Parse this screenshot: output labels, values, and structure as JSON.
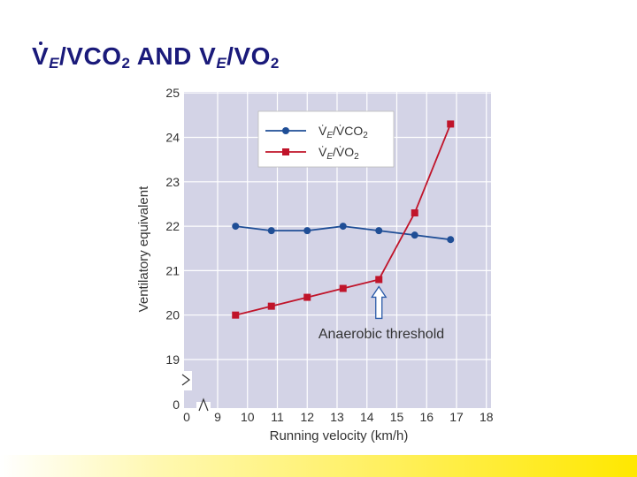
{
  "slide": {
    "title_part1": "V",
    "title_sub1": "E",
    "title_part2": "/V",
    "title_part3": "CO",
    "title_sub2": "2",
    "title_part4": " AND V",
    "title_sub3": "E",
    "title_part5": "/V",
    "title_part6": "O",
    "title_sub4": "2"
  },
  "colors": {
    "plot_background": "#d3d3e6",
    "grid": "#ffffff",
    "series_co2": "#1f4e96",
    "series_o2": "#c0142a",
    "arrow_fill": "#ffffff",
    "arrow_stroke": "#2a5aa8",
    "footer": "#ffe800"
  },
  "chart_data": {
    "type": "line",
    "xlabel": "Running velocity (km/h)",
    "ylabel": "Ventilatory equivalent",
    "xlim": [
      8,
      18
    ],
    "ylim": [
      19,
      25
    ],
    "x_ticks": [
      0,
      9,
      10,
      11,
      12,
      13,
      14,
      15,
      16,
      17,
      18
    ],
    "y_ticks": [
      0,
      19,
      20,
      21,
      22,
      23,
      24,
      25
    ],
    "axis_break": true,
    "grid": true,
    "legend_position": "top-center",
    "series": [
      {
        "name": "V̇E/V̇CO2",
        "legend_main": "V̇",
        "legend_sub": "E",
        "legend_mid": "/V̇CO",
        "legend_sub2": "2",
        "marker": "circle",
        "x": [
          9.6,
          10.8,
          12.0,
          13.2,
          14.4,
          15.6,
          16.8
        ],
        "y": [
          22.0,
          21.9,
          21.9,
          22.0,
          21.9,
          21.8,
          21.7
        ]
      },
      {
        "name": "V̇E/V̇O2",
        "legend_main": "V̇",
        "legend_sub": "E",
        "legend_mid": "/V̇O",
        "legend_sub2": "2",
        "marker": "square",
        "x": [
          9.6,
          10.8,
          12.0,
          13.2,
          14.4,
          15.6,
          16.8
        ],
        "y": [
          20.0,
          20.2,
          20.4,
          20.6,
          20.8,
          22.3,
          24.3
        ]
      }
    ],
    "annotation": {
      "text": "Anaerobic threshold",
      "points_to": {
        "x": 14.4,
        "y": 20.8
      }
    }
  }
}
